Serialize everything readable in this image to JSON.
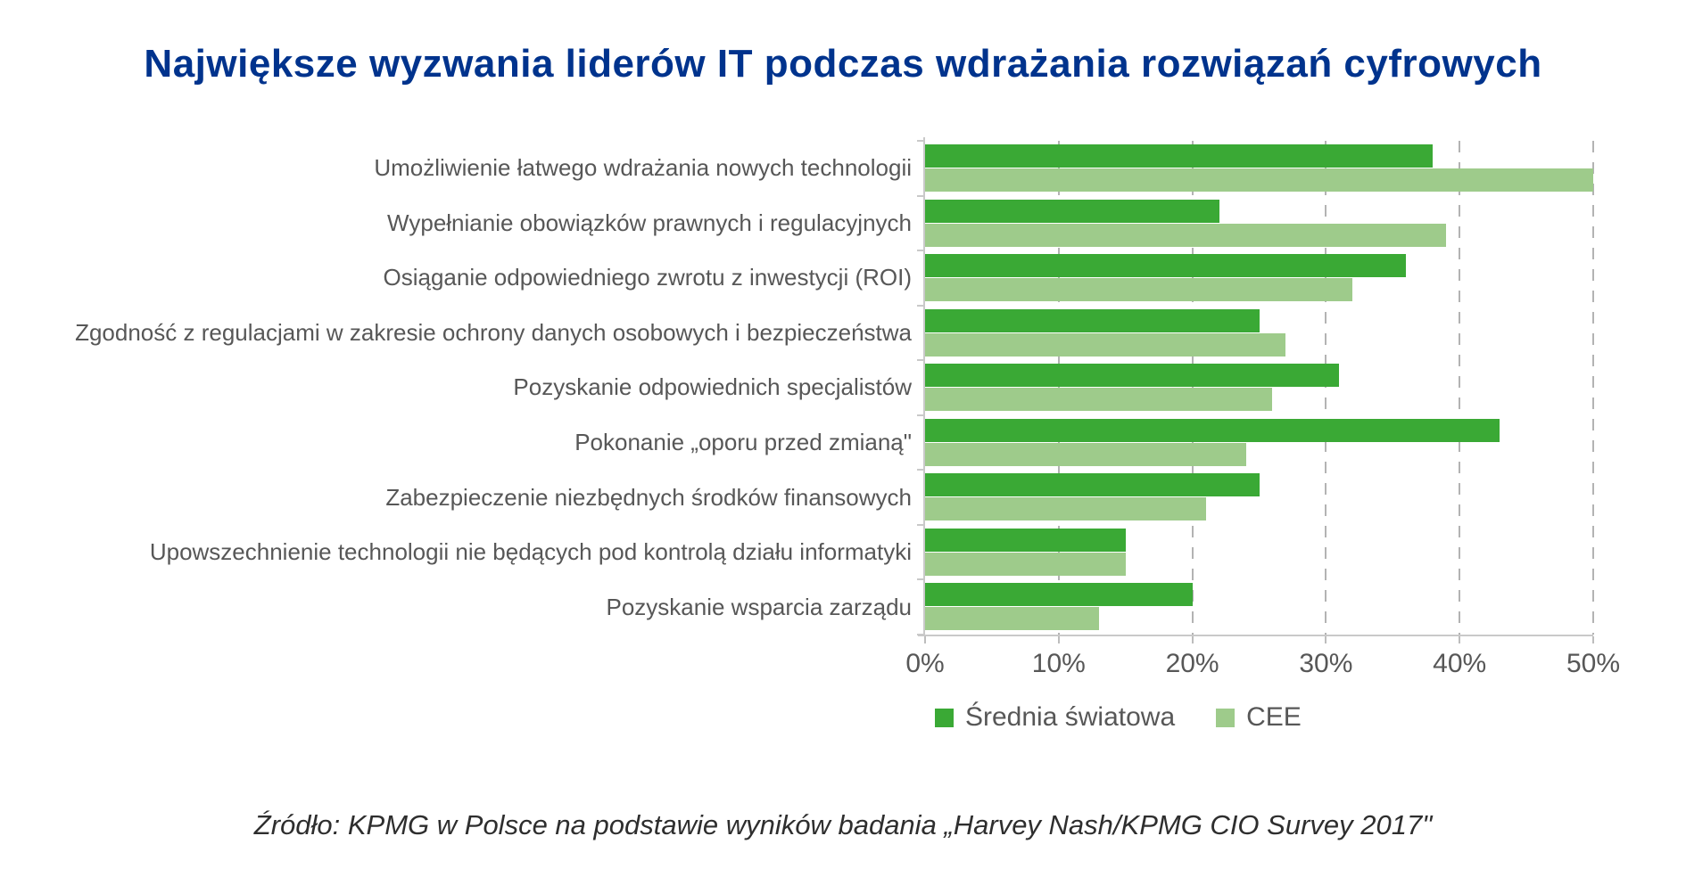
{
  "title": "Największe wyzwania liderów IT podczas wdrażania rozwiązań cyfrowych",
  "source": "Źródło: KPMG w Polsce na podstawie wyników badania „Harvey Nash/KPMG CIO Survey 2017\"",
  "colors": {
    "world": "#3aa935",
    "cee": "#9ecb8b",
    "title_blue": "#00338d",
    "axis_text": "#575757",
    "gridline": "#b3b3b3"
  },
  "chart_data": {
    "type": "bar",
    "orientation": "horizontal",
    "title": "Największe wyzwania liderów IT podczas wdrażania rozwiązań cyfrowych",
    "xlabel": "",
    "ylabel": "",
    "xlim": [
      0,
      50
    ],
    "x_ticks": [
      "0%",
      "10%",
      "20%",
      "30%",
      "40%",
      "50%"
    ],
    "grid": "vertical-dashed",
    "legend_position": "bottom",
    "categories": [
      "Umożliwienie łatwego wdrażania nowych technologii",
      "Wypełnianie obowiązków prawnych i regulacyjnych",
      "Osiąganie odpowiedniego zwrotu z inwestycji (ROI)",
      "Zgodność z regulacjami w zakresie ochrony danych osobowych i bezpieczeństwa",
      "Pozyskanie odpowiednich specjalistów",
      "Pokonanie „oporu przed zmianą\"",
      "Zabezpieczenie niezbędnych środków finansowych",
      "Upowszechnienie technologii nie będących pod kontrolą działu informatyki",
      "Pozyskanie wsparcia zarządu"
    ],
    "series": [
      {
        "name": "Średnia światowa",
        "color_key": "world",
        "values": [
          38,
          22,
          36,
          25,
          31,
          43,
          25,
          15,
          20
        ]
      },
      {
        "name": "CEE",
        "color_key": "cee",
        "values": [
          50,
          39,
          32,
          27,
          26,
          24,
          21,
          15,
          13
        ]
      }
    ]
  }
}
